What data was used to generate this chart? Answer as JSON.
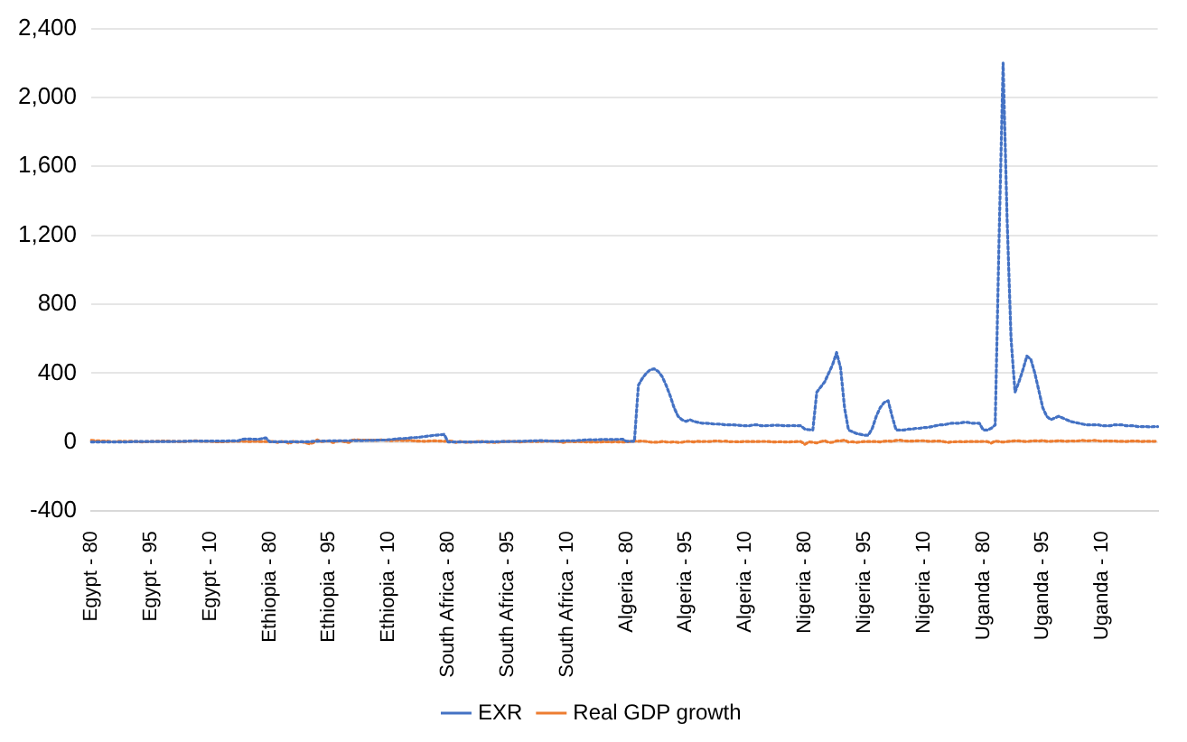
{
  "chart_data": {
    "type": "line",
    "categories": [
      "Egypt - 80",
      null,
      null,
      null,
      null,
      null,
      null,
      null,
      null,
      null,
      null,
      null,
      null,
      null,
      null,
      "Egypt - 95",
      null,
      null,
      null,
      null,
      null,
      null,
      null,
      null,
      null,
      null,
      null,
      null,
      null,
      null,
      "Egypt - 10",
      null,
      null,
      null,
      null,
      null,
      null,
      null,
      null,
      null,
      null,
      null,
      null,
      null,
      null,
      "Ethiopia - 80",
      null,
      null,
      null,
      null,
      null,
      null,
      null,
      null,
      null,
      null,
      null,
      null,
      null,
      null,
      "Ethiopia - 95",
      null,
      null,
      null,
      null,
      null,
      null,
      null,
      null,
      null,
      null,
      null,
      null,
      null,
      null,
      "Ethiopia - 10",
      null,
      null,
      null,
      null,
      null,
      null,
      null,
      null,
      null,
      null,
      null,
      null,
      null,
      null,
      "South Africa - 80",
      null,
      null,
      null,
      null,
      null,
      null,
      null,
      null,
      null,
      null,
      null,
      null,
      null,
      null,
      "South Africa - 95",
      null,
      null,
      null,
      null,
      null,
      null,
      null,
      null,
      null,
      null,
      null,
      null,
      null,
      null,
      "South Africa - 10",
      null,
      null,
      null,
      null,
      null,
      null,
      null,
      null,
      null,
      null,
      null,
      null,
      null,
      null,
      "Algeria - 80",
      null,
      null,
      null,
      null,
      null,
      null,
      null,
      null,
      null,
      null,
      null,
      null,
      null,
      null,
      "Algeria - 95",
      null,
      null,
      null,
      null,
      null,
      null,
      null,
      null,
      null,
      null,
      null,
      null,
      null,
      null,
      "Algeria - 10",
      null,
      null,
      null,
      null,
      null,
      null,
      null,
      null,
      null,
      null,
      null,
      null,
      null,
      null,
      "Nigeria - 80",
      null,
      null,
      null,
      null,
      null,
      null,
      null,
      null,
      null,
      null,
      null,
      null,
      null,
      null,
      "Nigeria - 95",
      null,
      null,
      null,
      null,
      null,
      null,
      null,
      null,
      null,
      null,
      null,
      null,
      null,
      null,
      "Nigeria - 10",
      null,
      null,
      null,
      null,
      null,
      null,
      null,
      null,
      null,
      null,
      null,
      null,
      null,
      null,
      "Uganda - 80",
      null,
      null,
      null,
      null,
      null,
      null,
      null,
      null,
      null,
      null,
      null,
      null,
      null,
      null,
      "Uganda - 95",
      null,
      null,
      null,
      null,
      null,
      null,
      null,
      null,
      null,
      null,
      null,
      null,
      null,
      null,
      "Uganda - 10",
      null,
      null,
      null,
      null,
      null,
      null,
      null,
      null,
      null,
      null,
      null,
      null,
      null,
      null
    ],
    "series": [
      {
        "name": "EXR",
        "color": "#4472c4",
        "values": [
          1,
          1,
          1,
          1,
          1,
          1,
          1,
          1,
          1,
          1,
          2,
          3,
          3,
          3,
          3,
          3,
          3,
          3,
          3,
          3,
          3,
          4,
          4,
          4,
          5,
          6,
          6,
          6,
          6,
          6,
          6,
          6,
          6,
          6,
          6,
          7,
          7,
          7,
          16,
          18,
          18,
          16,
          16,
          20,
          25,
          2,
          2,
          2,
          2,
          2,
          2,
          2,
          2,
          2,
          2,
          2,
          5,
          5,
          6,
          6,
          7,
          7,
          7,
          8,
          8,
          8,
          9,
          9,
          9,
          9,
          10,
          10,
          11,
          12,
          12,
          14,
          16,
          19,
          20,
          21,
          23,
          26,
          27,
          29,
          32,
          35,
          38,
          40,
          42,
          45,
          1,
          1,
          1,
          1,
          1,
          1,
          1,
          1,
          1,
          2,
          2,
          2,
          2,
          3,
          3,
          3,
          4,
          4,
          5,
          5,
          6,
          7,
          7,
          9,
          8,
          7,
          6,
          6,
          6,
          7,
          8,
          8,
          8,
          10,
          11,
          13,
          14,
          13,
          14,
          16,
          15,
          15,
          15,
          16,
          17,
          5,
          5,
          5,
          330,
          370,
          400,
          420,
          425,
          410,
          380,
          330,
          270,
          200,
          150,
          130,
          120,
          130,
          120,
          115,
          110,
          110,
          108,
          105,
          105,
          103,
          100,
          100,
          100,
          98,
          96,
          95,
          95,
          100,
          100,
          95,
          95,
          96,
          98,
          98,
          97,
          95,
          95,
          96,
          95,
          95,
          75,
          72,
          70,
          290,
          320,
          350,
          400,
          450,
          520,
          430,
          200,
          70,
          60,
          50,
          45,
          40,
          40,
          80,
          150,
          200,
          230,
          240,
          150,
          70,
          70,
          70,
          75,
          75,
          80,
          80,
          85,
          85,
          90,
          95,
          100,
          100,
          105,
          110,
          110,
          110,
          115,
          115,
          110,
          110,
          110,
          70,
          70,
          80,
          100,
          1200,
          2200,
          1300,
          600,
          290,
          350,
          420,
          500,
          480,
          400,
          300,
          200,
          150,
          130,
          140,
          150,
          140,
          130,
          120,
          115,
          110,
          105,
          100,
          100,
          100,
          100,
          95,
          95,
          95,
          100,
          100,
          100,
          95,
          95,
          95,
          90,
          90,
          90,
          88,
          90,
          90
        ]
      },
      {
        "name": "Real GDP growth",
        "color": "#ed7d31",
        "values": [
          10,
          8,
          7,
          6,
          6,
          3,
          2,
          5,
          5,
          4,
          5,
          4,
          3,
          1,
          2,
          4,
          4,
          5,
          6,
          6,
          5,
          4,
          3,
          3,
          4,
          6,
          7,
          7,
          4,
          5,
          5,
          2,
          2,
          2,
          3,
          4,
          4,
          5,
          5,
          4,
          3,
          4,
          4,
          3,
          3,
          2,
          4,
          -2,
          3,
          2,
          -8,
          5,
          -1,
          2,
          -4,
          -10,
          -3,
          13,
          3,
          5,
          6,
          -3,
          5,
          8,
          1,
          -2,
          12,
          13,
          11,
          12,
          11,
          11,
          10,
          13,
          11,
          9,
          9,
          10,
          10,
          8,
          10,
          8,
          6,
          6,
          5,
          6,
          7,
          7,
          6,
          5,
          6,
          5,
          -2,
          4,
          0,
          -1,
          0,
          2,
          4,
          2,
          -1,
          -1,
          -2,
          1,
          3,
          4,
          4,
          3,
          1,
          2,
          4,
          3,
          4,
          3,
          5,
          5,
          6,
          5,
          3,
          -2,
          3,
          3,
          2,
          3,
          2,
          1,
          1,
          1,
          0,
          2,
          2,
          1,
          2,
          1,
          1,
          1,
          4,
          6,
          5,
          6,
          4,
          0,
          -1,
          -1,
          4,
          1,
          -1,
          2,
          -2,
          -1,
          4,
          4,
          1,
          5,
          3,
          4,
          3,
          6,
          7,
          4,
          6,
          2,
          3,
          2,
          2,
          4,
          3,
          3,
          3,
          4,
          4,
          3,
          1,
          1,
          2,
          1,
          1,
          2,
          3,
          3,
          -13,
          1,
          -1,
          -5,
          3,
          8,
          -2,
          -1,
          7,
          7,
          12,
          0,
          2,
          -2,
          1,
          3,
          3,
          3,
          3,
          1,
          5,
          6,
          4,
          10,
          11,
          7,
          6,
          6,
          7,
          8,
          8,
          5,
          5,
          6,
          6,
          3,
          -2,
          1,
          2,
          3,
          2,
          3,
          3,
          3,
          3,
          4,
          3,
          -6,
          6,
          3,
          0,
          3,
          6,
          7,
          7,
          5,
          3,
          6,
          8,
          6,
          9,
          5,
          5,
          6,
          8,
          6,
          5,
          7,
          6,
          7,
          10,
          7,
          8,
          10,
          7,
          5,
          8,
          6,
          7,
          4,
          5,
          3,
          6,
          6,
          6,
          3,
          5,
          5,
          4,
          5
        ]
      }
    ],
    "ylim": [
      -400,
      2400
    ],
    "yticks": [
      {
        "value": -400,
        "label": "-400"
      },
      0,
      400,
      800,
      {
        "value": 1200,
        "label": "1,200"
      },
      {
        "value": 1600,
        "label": "1,600"
      },
      {
        "value": 2000,
        "label": "2,000"
      },
      {
        "value": 2400,
        "label": "2,400"
      }
    ],
    "grid": "y",
    "legend": "bottom",
    "line_style": "dotted",
    "marker": "none"
  }
}
